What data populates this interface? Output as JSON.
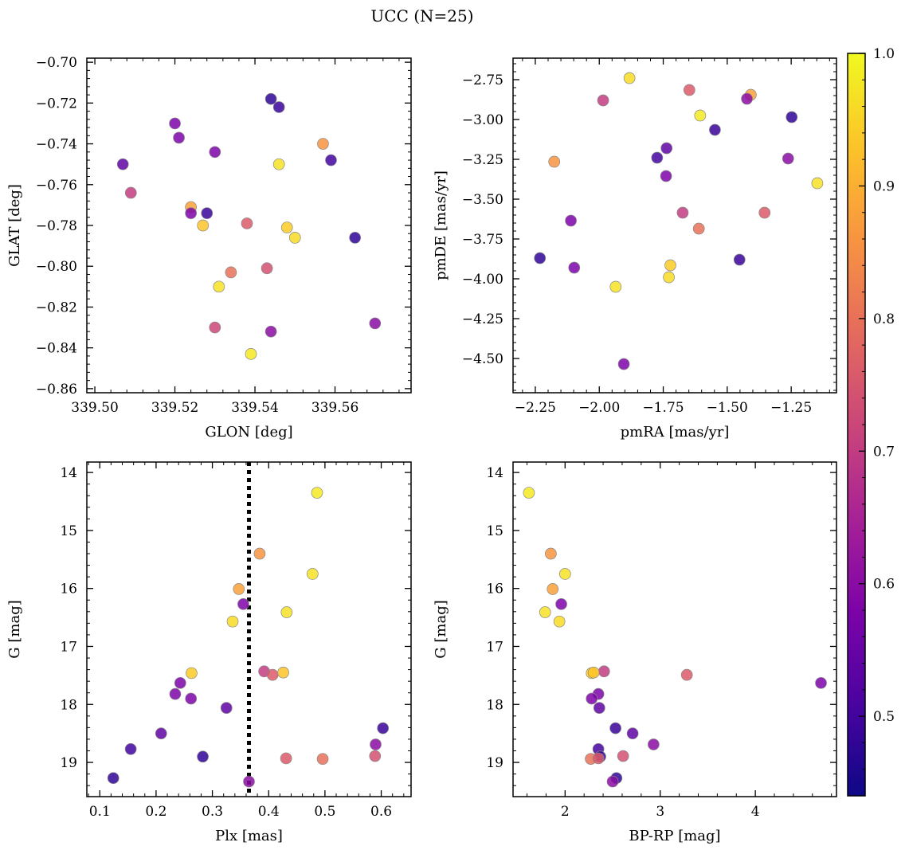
{
  "title": "UCC (N=25)",
  "colors": {
    "colormap": "plasma",
    "marker_edge": "#888888",
    "dotted_line": "#000000",
    "background": "#ffffff"
  },
  "colorbar": {
    "cmap": "plasma",
    "min": 0.44,
    "max": 1.0,
    "ticks": [
      0.5,
      0.6,
      0.7,
      0.8,
      0.9,
      1.0
    ],
    "tick_labels": [
      "0.5",
      "0.6",
      "0.7",
      "0.8",
      "0.9",
      "1.0"
    ]
  },
  "chart_data": [
    {
      "type": "scatter",
      "xlabel": "GLON [deg]",
      "ylabel": "GLAT [deg]",
      "xlim": [
        339.498,
        339.579
      ],
      "ylim": [
        -0.862,
        -0.698
      ],
      "y_inverted": false,
      "xticks": [
        339.5,
        339.52,
        339.54,
        339.56
      ],
      "xtick_labels": [
        "339.50",
        "339.52",
        "339.54",
        "339.56"
      ],
      "yticks": [
        -0.86,
        -0.84,
        -0.82,
        -0.8,
        -0.78,
        -0.76,
        -0.74,
        -0.72,
        -0.7
      ],
      "ytick_labels": [
        "−0.86",
        "−0.84",
        "−0.82",
        "−0.80",
        "−0.78",
        "−0.76",
        "−0.74",
        "−0.72",
        "−0.70"
      ],
      "points": [
        {
          "x": 339.544,
          "y": -0.718,
          "c": 0.48
        },
        {
          "x": 339.546,
          "y": -0.722,
          "c": 0.49
        },
        {
          "x": 339.52,
          "y": -0.73,
          "c": 0.58
        },
        {
          "x": 339.521,
          "y": -0.737,
          "c": 0.58
        },
        {
          "x": 339.53,
          "y": -0.744,
          "c": 0.58
        },
        {
          "x": 339.557,
          "y": -0.74,
          "c": 0.86
        },
        {
          "x": 339.507,
          "y": -0.75,
          "c": 0.54
        },
        {
          "x": 339.559,
          "y": -0.748,
          "c": 0.5
        },
        {
          "x": 339.546,
          "y": -0.75,
          "c": 0.97
        },
        {
          "x": 339.509,
          "y": -0.764,
          "c": 0.7
        },
        {
          "x": 339.524,
          "y": -0.771,
          "c": 0.88
        },
        {
          "x": 339.524,
          "y": -0.774,
          "c": 0.58
        },
        {
          "x": 339.528,
          "y": -0.774,
          "c": 0.49
        },
        {
          "x": 339.527,
          "y": -0.78,
          "c": 0.93
        },
        {
          "x": 339.538,
          "y": -0.779,
          "c": 0.76
        },
        {
          "x": 339.548,
          "y": -0.781,
          "c": 0.94
        },
        {
          "x": 339.55,
          "y": -0.786,
          "c": 0.96
        },
        {
          "x": 339.565,
          "y": -0.786,
          "c": 0.48
        },
        {
          "x": 339.543,
          "y": -0.801,
          "c": 0.74
        },
        {
          "x": 339.534,
          "y": -0.803,
          "c": 0.8
        },
        {
          "x": 339.531,
          "y": -0.81,
          "c": 0.97
        },
        {
          "x": 339.57,
          "y": -0.828,
          "c": 0.6
        },
        {
          "x": 339.53,
          "y": -0.83,
          "c": 0.72
        },
        {
          "x": 339.544,
          "y": -0.832,
          "c": 0.6
        },
        {
          "x": 339.539,
          "y": -0.843,
          "c": 0.98
        }
      ]
    },
    {
      "type": "scatter",
      "xlabel": "pmRA [mas/yr]",
      "ylabel": "pmDE [mas/yr]",
      "xlim": [
        -2.337,
        -1.073
      ],
      "ylim": [
        -4.715,
        -2.615
      ],
      "y_inverted": false,
      "xticks": [
        -2.25,
        -2.0,
        -1.75,
        -1.5,
        -1.25
      ],
      "xtick_labels": [
        "−2.25",
        "−2.00",
        "−1.75",
        "−1.50",
        "−1.25"
      ],
      "yticks": [
        -4.5,
        -4.25,
        -4.0,
        -3.75,
        -3.5,
        -3.25,
        -3.0,
        -2.75
      ],
      "ytick_labels": [
        "−4.50",
        "−4.25",
        "−4.00",
        "−3.75",
        "−3.50",
        "−3.25",
        "−3.00",
        "−2.75"
      ],
      "points": [
        {
          "x": -1.882,
          "y": -2.74,
          "c": 0.96
        },
        {
          "x": -1.648,
          "y": -2.815,
          "c": 0.76
        },
        {
          "x": -1.408,
          "y": -2.845,
          "c": 0.88
        },
        {
          "x": -1.985,
          "y": -2.88,
          "c": 0.7
        },
        {
          "x": -1.423,
          "y": -2.87,
          "c": 0.6
        },
        {
          "x": -1.606,
          "y": -2.975,
          "c": 0.98
        },
        {
          "x": -1.248,
          "y": -2.985,
          "c": 0.48
        },
        {
          "x": -1.548,
          "y": -3.065,
          "c": 0.49
        },
        {
          "x": -1.737,
          "y": -3.18,
          "c": 0.54
        },
        {
          "x": -1.774,
          "y": -3.24,
          "c": 0.5
        },
        {
          "x": -2.176,
          "y": -3.265,
          "c": 0.86
        },
        {
          "x": -1.262,
          "y": -3.245,
          "c": 0.6
        },
        {
          "x": -1.739,
          "y": -3.355,
          "c": 0.58
        },
        {
          "x": -1.148,
          "y": -3.4,
          "c": 0.97
        },
        {
          "x": -1.674,
          "y": -3.585,
          "c": 0.7
        },
        {
          "x": -1.354,
          "y": -3.585,
          "c": 0.76
        },
        {
          "x": -2.111,
          "y": -3.635,
          "c": 0.58
        },
        {
          "x": -1.611,
          "y": -3.685,
          "c": 0.8
        },
        {
          "x": -2.232,
          "y": -3.87,
          "c": 0.48
        },
        {
          "x": -1.452,
          "y": -3.88,
          "c": 0.49
        },
        {
          "x": -1.722,
          "y": -3.915,
          "c": 0.94
        },
        {
          "x": -2.098,
          "y": -3.93,
          "c": 0.58
        },
        {
          "x": -1.728,
          "y": -3.99,
          "c": 0.96
        },
        {
          "x": -1.936,
          "y": -4.05,
          "c": 0.97
        },
        {
          "x": -1.904,
          "y": -4.535,
          "c": 0.58
        }
      ]
    },
    {
      "type": "scatter",
      "xlabel": "Plx [mas]",
      "ylabel": "G [mag]",
      "xlim": [
        0.077,
        0.653
      ],
      "ylim": [
        19.59,
        13.82
      ],
      "y_inverted": true,
      "vline": {
        "x": 0.365,
        "style": "dotted"
      },
      "xticks": [
        0.1,
        0.2,
        0.3,
        0.4,
        0.5,
        0.6
      ],
      "xtick_labels": [
        "0.1",
        "0.2",
        "0.3",
        "0.4",
        "0.5",
        "0.6"
      ],
      "yticks": [
        14,
        15,
        16,
        17,
        18,
        19
      ],
      "ytick_labels": [
        "14",
        "15",
        "16",
        "17",
        "18",
        "19"
      ],
      "points": [
        {
          "x": 0.486,
          "y": 14.35,
          "c": 0.98
        },
        {
          "x": 0.384,
          "y": 15.4,
          "c": 0.86
        },
        {
          "x": 0.478,
          "y": 15.75,
          "c": 0.97
        },
        {
          "x": 0.347,
          "y": 16.01,
          "c": 0.88
        },
        {
          "x": 0.355,
          "y": 16.27,
          "c": 0.58
        },
        {
          "x": 0.336,
          "y": 16.57,
          "c": 0.96
        },
        {
          "x": 0.432,
          "y": 16.41,
          "c": 0.97
        },
        {
          "x": 0.392,
          "y": 17.43,
          "c": 0.7
        },
        {
          "x": 0.407,
          "y": 17.49,
          "c": 0.76
        },
        {
          "x": 0.426,
          "y": 17.45,
          "c": 0.93
        },
        {
          "x": 0.263,
          "y": 17.46,
          "c": 0.94
        },
        {
          "x": 0.243,
          "y": 17.63,
          "c": 0.58
        },
        {
          "x": 0.234,
          "y": 17.82,
          "c": 0.58
        },
        {
          "x": 0.262,
          "y": 17.9,
          "c": 0.58
        },
        {
          "x": 0.325,
          "y": 18.06,
          "c": 0.54
        },
        {
          "x": 0.209,
          "y": 18.5,
          "c": 0.54
        },
        {
          "x": 0.603,
          "y": 18.41,
          "c": 0.49
        },
        {
          "x": 0.59,
          "y": 18.69,
          "c": 0.6
        },
        {
          "x": 0.155,
          "y": 18.77,
          "c": 0.5
        },
        {
          "x": 0.283,
          "y": 18.9,
          "c": 0.48
        },
        {
          "x": 0.431,
          "y": 18.93,
          "c": 0.76
        },
        {
          "x": 0.496,
          "y": 18.94,
          "c": 0.8
        },
        {
          "x": 0.589,
          "y": 18.89,
          "c": 0.74
        },
        {
          "x": 0.124,
          "y": 19.27,
          "c": 0.48
        },
        {
          "x": 0.365,
          "y": 19.33,
          "c": 0.6
        }
      ]
    },
    {
      "type": "scatter",
      "xlabel": "BP-RP [mag]",
      "ylabel": "G [mag]",
      "xlim": [
        1.453,
        4.853
      ],
      "ylim": [
        19.59,
        13.82
      ],
      "y_inverted": true,
      "xticks": [
        2,
        3,
        4
      ],
      "xtick_labels": [
        "2",
        "3",
        "4"
      ],
      "yticks": [
        14,
        15,
        16,
        17,
        18,
        19
      ],
      "ytick_labels": [
        "14",
        "15",
        "16",
        "17",
        "18",
        "19"
      ],
      "points": [
        {
          "x": 1.62,
          "y": 14.35,
          "c": 0.98
        },
        {
          "x": 1.85,
          "y": 15.4,
          "c": 0.86
        },
        {
          "x": 2.0,
          "y": 15.75,
          "c": 0.97
        },
        {
          "x": 1.87,
          "y": 16.01,
          "c": 0.88
        },
        {
          "x": 1.96,
          "y": 16.27,
          "c": 0.58
        },
        {
          "x": 1.79,
          "y": 16.41,
          "c": 0.97
        },
        {
          "x": 1.94,
          "y": 16.57,
          "c": 0.96
        },
        {
          "x": 2.41,
          "y": 17.43,
          "c": 0.7
        },
        {
          "x": 2.28,
          "y": 17.46,
          "c": 0.94
        },
        {
          "x": 2.3,
          "y": 17.45,
          "c": 0.93
        },
        {
          "x": 3.28,
          "y": 17.49,
          "c": 0.76
        },
        {
          "x": 4.69,
          "y": 17.63,
          "c": 0.58
        },
        {
          "x": 2.35,
          "y": 17.82,
          "c": 0.58
        },
        {
          "x": 2.28,
          "y": 17.9,
          "c": 0.58
        },
        {
          "x": 2.36,
          "y": 18.06,
          "c": 0.54
        },
        {
          "x": 2.53,
          "y": 18.41,
          "c": 0.49
        },
        {
          "x": 2.71,
          "y": 18.5,
          "c": 0.54
        },
        {
          "x": 2.93,
          "y": 18.69,
          "c": 0.6
        },
        {
          "x": 2.35,
          "y": 18.77,
          "c": 0.5
        },
        {
          "x": 2.37,
          "y": 18.9,
          "c": 0.48
        },
        {
          "x": 2.61,
          "y": 18.89,
          "c": 0.74
        },
        {
          "x": 2.27,
          "y": 18.94,
          "c": 0.8
        },
        {
          "x": 2.35,
          "y": 18.93,
          "c": 0.76
        },
        {
          "x": 2.54,
          "y": 19.27,
          "c": 0.48
        },
        {
          "x": 2.5,
          "y": 19.33,
          "c": 0.6
        }
      ]
    }
  ]
}
